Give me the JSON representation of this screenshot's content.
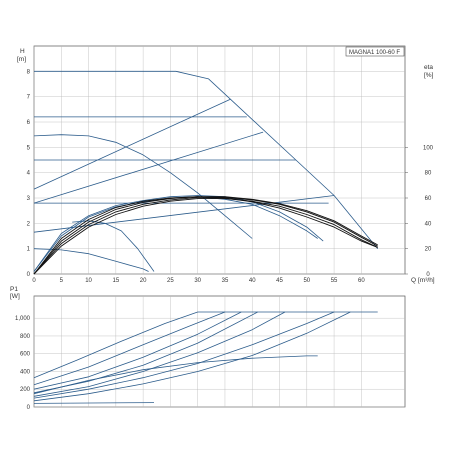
{
  "title": "MAGNA1 100-60 F",
  "colors": {
    "curve": "#2d5d8c",
    "efficiency": "#111111",
    "grid": "#b8b8b8",
    "frame": "#555555"
  },
  "chart_data": [
    {
      "type": "line",
      "panel": "head",
      "ylabel": "H",
      "yunit": "[m]",
      "xlabel": "Q",
      "xunit": "[m³/h]",
      "xlim": [
        0,
        68
      ],
      "ylim": [
        0,
        9
      ],
      "xticks": [
        "0",
        "5",
        "10",
        "15",
        "20",
        "25",
        "30",
        "35",
        "40",
        "45",
        "50",
        "55",
        "60"
      ],
      "yticks": [
        "0",
        "1",
        "2",
        "3",
        "4",
        "5",
        "6",
        "7",
        "8"
      ],
      "y2label": "eta",
      "y2unit": "[%]",
      "y2lim": [
        0,
        180
      ],
      "y2ticks": [
        "0",
        "20",
        "40",
        "60",
        "80",
        "100"
      ],
      "grid": true,
      "series": [
        {
          "values": [
            [
              0,
              8
            ],
            [
              26,
              8
            ],
            [
              32,
              7.7
            ],
            [
              36,
              6.9
            ],
            [
              48,
              4.5
            ],
            [
              55,
              3.1
            ],
            [
              63,
              1
            ]
          ]
        },
        {
          "values": [
            [
              0,
              6.2
            ],
            [
              39,
              6.2
            ]
          ]
        },
        {
          "values": [
            [
              0,
              4.5
            ],
            [
              48,
              4.5
            ]
          ]
        },
        {
          "values": [
            [
              0,
              2.8
            ],
            [
              54,
              2.8
            ]
          ]
        },
        {
          "values": [
            [
              0,
              3.35
            ],
            [
              36,
              6.9
            ]
          ]
        },
        {
          "values": [
            [
              0,
              2.8
            ],
            [
              42,
              5.6
            ]
          ]
        },
        {
          "values": [
            [
              0,
              1.65
            ],
            [
              55,
              3.1
            ]
          ]
        },
        {
          "values": [
            [
              0,
              5.45
            ],
            [
              5,
              5.5
            ],
            [
              10,
              5.45
            ],
            [
              15,
              5.2
            ],
            [
              20,
              4.7
            ],
            [
              25,
              4.0
            ],
            [
              30,
              3.2
            ],
            [
              35,
              2.3
            ],
            [
              40,
              1.4
            ]
          ]
        },
        {
          "values": [
            [
              0,
              1.0
            ],
            [
              5,
              0.95
            ],
            [
              10,
              0.8
            ],
            [
              15,
              0.5
            ],
            [
              20,
              0.2
            ],
            [
              21,
              0.1
            ]
          ]
        },
        {
          "values": [
            [
              7,
              2.05
            ],
            [
              10,
              2.1
            ],
            [
              13,
              2.0
            ],
            [
              16,
              1.7
            ],
            [
              19,
              1.0
            ],
            [
              21,
              0.4
            ],
            [
              22,
              0.1
            ]
          ]
        },
        {
          "values": [
            [
              0,
              0.1
            ],
            [
              5,
              1.6
            ],
            [
              10,
              2.3
            ],
            [
              15,
              2.7
            ],
            [
              20,
              2.9
            ],
            [
              25,
              3.05
            ],
            [
              30,
              3.1
            ],
            [
              35,
              3.05
            ],
            [
              40,
              2.85
            ],
            [
              45,
              2.45
            ],
            [
              50,
              1.85
            ],
            [
              53,
              1.3
            ]
          ]
        },
        {
          "values": [
            [
              0,
              0.1
            ],
            [
              5,
              1.5
            ],
            [
              10,
              2.25
            ],
            [
              15,
              2.65
            ],
            [
              20,
              2.85
            ],
            [
              25,
              3.0
            ],
            [
              30,
              3.05
            ],
            [
              35,
              2.95
            ],
            [
              40,
              2.75
            ],
            [
              45,
              2.3
            ],
            [
              50,
              1.7
            ],
            [
              52,
              1.4
            ]
          ]
        }
      ],
      "efficiency_series": [
        {
          "values": [
            [
              0,
              0
            ],
            [
              5,
              26
            ],
            [
              10,
              41
            ],
            [
              15,
              51
            ],
            [
              20,
              56.5
            ],
            [
              25,
              59.5
            ],
            [
              30,
              61
            ],
            [
              35,
              61
            ],
            [
              40,
              59
            ],
            [
              45,
              55.5
            ],
            [
              50,
              50
            ],
            [
              55,
              42
            ],
            [
              60,
              30
            ],
            [
              63,
              23
            ]
          ]
        },
        {
          "values": [
            [
              0,
              0
            ],
            [
              5,
              24
            ],
            [
              10,
              39
            ],
            [
              15,
              49
            ],
            [
              20,
              55
            ],
            [
              25,
              58.5
            ],
            [
              30,
              60.5
            ],
            [
              35,
              60.5
            ],
            [
              40,
              58.5
            ],
            [
              45,
              55
            ],
            [
              50,
              49
            ],
            [
              55,
              41
            ],
            [
              60,
              29
            ],
            [
              63,
              22
            ]
          ]
        },
        {
          "values": [
            [
              0,
              0
            ],
            [
              5,
              22
            ],
            [
              10,
              37
            ],
            [
              15,
              47
            ],
            [
              20,
              53.5
            ],
            [
              25,
              57.5
            ],
            [
              30,
              59.5
            ],
            [
              35,
              59.5
            ],
            [
              40,
              57.5
            ],
            [
              45,
              53.5
            ],
            [
              50,
              47
            ],
            [
              55,
              39
            ],
            [
              60,
              27
            ],
            [
              63,
              21
            ]
          ]
        },
        {
          "values": [
            [
              0,
              0
            ],
            [
              5,
              28
            ],
            [
              10,
              43
            ],
            [
              15,
              52.5
            ],
            [
              20,
              57.5
            ],
            [
              25,
              60
            ],
            [
              30,
              61
            ],
            [
              35,
              60
            ],
            [
              40,
              57
            ],
            [
              45,
              52
            ],
            [
              50,
              45
            ],
            [
              55,
              37
            ],
            [
              60,
              26
            ],
            [
              63,
              21
            ]
          ]
        }
      ]
    },
    {
      "type": "line",
      "panel": "power",
      "ylabel": "P1",
      "yunit": "[W]",
      "xlim": [
        0,
        68
      ],
      "ylim": [
        0,
        1250
      ],
      "yticks": [
        "0",
        "200",
        "400",
        "600",
        "800",
        "1,000"
      ],
      "grid": true,
      "series": [
        {
          "values": [
            [
              0,
              330
            ],
            [
              8,
              530
            ],
            [
              16,
              740
            ],
            [
              24,
              940
            ],
            [
              30,
              1070
            ],
            [
              63,
              1070
            ]
          ]
        },
        {
          "values": [
            [
              0,
              250
            ],
            [
              10,
              450
            ],
            [
              20,
              700
            ],
            [
              28,
              900
            ],
            [
              35,
              1070
            ]
          ]
        },
        {
          "values": [
            [
              0,
              200
            ],
            [
              10,
              340
            ],
            [
              20,
              560
            ],
            [
              30,
              820
            ],
            [
              38,
              1070
            ]
          ]
        },
        {
          "values": [
            [
              0,
              160
            ],
            [
              10,
              290
            ],
            [
              20,
              470
            ],
            [
              30,
              720
            ],
            [
              41,
              1070
            ]
          ]
        },
        {
          "values": [
            [
              0,
              120
            ],
            [
              10,
              230
            ],
            [
              20,
              400
            ],
            [
              30,
              610
            ],
            [
              40,
              870
            ],
            [
              46,
              1070
            ]
          ]
        },
        {
          "values": [
            [
              0,
              100
            ],
            [
              10,
              200
            ],
            [
              20,
              330
            ],
            [
              30,
              490
            ],
            [
              40,
              700
            ],
            [
              50,
              940
            ],
            [
              55,
              1070
            ]
          ]
        },
        {
          "values": [
            [
              0,
              70
            ],
            [
              10,
              150
            ],
            [
              20,
              260
            ],
            [
              30,
              400
            ],
            [
              40,
              580
            ],
            [
              50,
              830
            ],
            [
              58,
              1070
            ]
          ]
        },
        {
          "values": [
            [
              0,
              150
            ],
            [
              10,
              300
            ],
            [
              20,
              420
            ],
            [
              30,
              500
            ],
            [
              40,
              550
            ],
            [
              50,
              575
            ],
            [
              52,
              575
            ]
          ]
        },
        {
          "values": [
            [
              0,
              40
            ],
            [
              22,
              50
            ]
          ]
        }
      ]
    }
  ]
}
